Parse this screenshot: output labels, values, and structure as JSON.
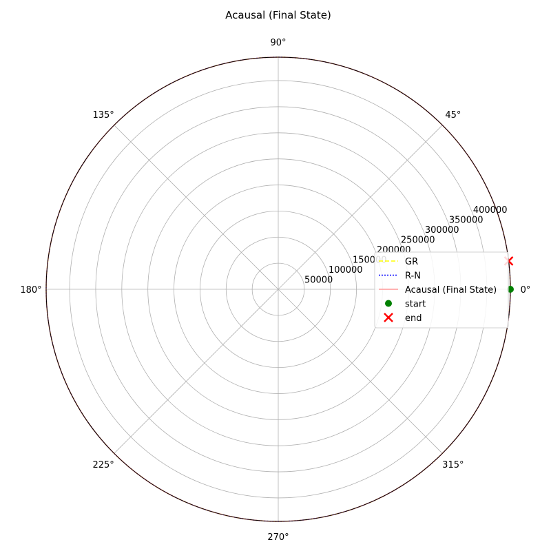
{
  "chart_data": {
    "type": "polar-line",
    "title": "Acausal (Final State)",
    "angle_ticks": [
      "0°",
      "45°",
      "90°",
      "135°",
      "180°",
      "225°",
      "270°",
      "315°"
    ],
    "angle_tick_values": [
      0,
      45,
      90,
      135,
      180,
      225,
      270,
      315
    ],
    "radial_ticks": [
      "50000",
      "100000",
      "150000",
      "200000",
      "250000",
      "300000",
      "350000",
      "400000"
    ],
    "radial_tick_values": [
      50000,
      100000,
      150000,
      200000,
      250000,
      300000,
      350000,
      400000
    ],
    "rlim": [
      0,
      445000
    ],
    "radial_label_angle_deg": 22.5,
    "grid": true,
    "legend_placement": "right",
    "series": [
      {
        "name": "GR",
        "color": "#ffff00",
        "style": "dashed",
        "r": 445000,
        "theta_range": [
          0,
          360
        ]
      },
      {
        "name": "R-N",
        "color": "#0000ff",
        "style": "dotted",
        "r": 445000,
        "theta_range": [
          0,
          360
        ]
      },
      {
        "name": "Acausal (Final State)",
        "color": "#ff9999",
        "style": "solid",
        "r": 445000,
        "theta_range": [
          0,
          360
        ]
      }
    ],
    "markers": [
      {
        "name": "start",
        "color": "#008000",
        "shape": "circle",
        "r": 445000,
        "theta": 0
      },
      {
        "name": "end",
        "color": "#ff0000",
        "shape": "x",
        "r": 445000,
        "theta": 7
      }
    ]
  }
}
